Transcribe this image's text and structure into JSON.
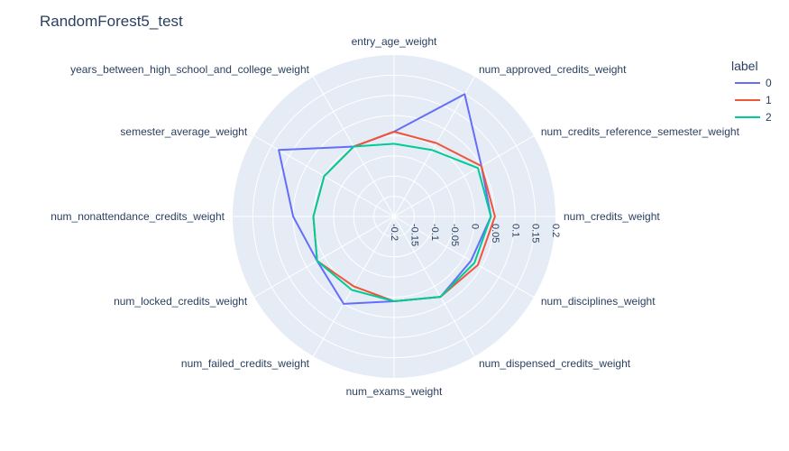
{
  "chart_data": {
    "type": "radar",
    "title": "RandomForest5_test",
    "axes": [
      "entry_age_weight",
      "num_approved_credits_weight",
      "num_credits_reference_semester_weight",
      "num_credits_weight",
      "num_disciplines_weight",
      "num_dispensed_credits_weight",
      "num_exams_weight",
      "num_failed_credits_weight",
      "num_locked_credits_weight",
      "num_nonattendance_credits_weight",
      "semester_average_weight",
      "years_between_high_school_and_college_weight"
    ],
    "radial_range": [
      -0.2,
      0.2
    ],
    "radial_ticks": [
      "-0.2",
      "-0.15",
      "-0.1",
      "-0.05",
      "0",
      "0.05",
      "0.1",
      "0.15",
      "0.2"
    ],
    "legend": {
      "title": "label",
      "position": "top-right"
    },
    "series": [
      {
        "name": "0",
        "color": "#636efa",
        "values": [
          0.01,
          0.15,
          0.05,
          0.04,
          0.02,
          0.03,
          0.01,
          0.05,
          0.02,
          0.05,
          0.13,
          0.0
        ]
      },
      {
        "name": "1",
        "color": "#ef553b",
        "values": [
          0.01,
          0.01,
          0.05,
          0.05,
          0.04,
          0.03,
          0.01,
          0.0,
          0.02,
          -0.0,
          0.0,
          0.0
        ]
      },
      {
        "name": "2",
        "color": "#00cc96",
        "values": [
          -0.02,
          -0.01,
          0.04,
          0.04,
          0.03,
          0.03,
          0.01,
          0.01,
          0.02,
          -0.0,
          0.0,
          0.0
        ]
      }
    ]
  }
}
